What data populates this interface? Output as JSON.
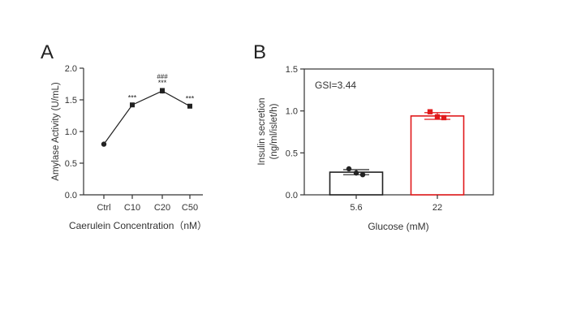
{
  "chart_data": [
    {
      "panel_label": "A",
      "type": "line",
      "categories": [
        "Ctrl",
        "C10",
        "C20",
        "C50"
      ],
      "series": [
        {
          "values": [
            0.8,
            1.42,
            1.64,
            1.4
          ],
          "errors": [
            0.0,
            0.02,
            0.04,
            0.03
          ]
        }
      ],
      "significance": [
        "",
        "***",
        "***",
        "***"
      ],
      "significance_top": [
        "",
        "",
        "###",
        ""
      ],
      "ylabel": "Amylase Activity (U/mL)",
      "xlabel": "Caerulein Concentration（nM）",
      "ylim": [
        0.0,
        2.0
      ],
      "yticks": [
        "0.0",
        "0.5",
        "1.0",
        "1.5",
        "2.0"
      ],
      "ytick_values": [
        0.0,
        0.5,
        1.0,
        1.5,
        2.0
      ],
      "grid": false,
      "colors": {
        "series": "#222222"
      }
    },
    {
      "panel_label": "B",
      "type": "bar",
      "categories": [
        "5.6",
        "22"
      ],
      "values": [
        0.27,
        0.94
      ],
      "errors": [
        0.03,
        0.04
      ],
      "points": [
        [
          0.31,
          0.26,
          0.24
        ],
        [
          0.99,
          0.93,
          0.92
        ]
      ],
      "annotation": "GSI=3.44",
      "ylabel_line1": "Insulin secretion",
      "ylabel_line2": "(ng/ml/islet/h)",
      "xlabel": "Glucose (mM)",
      "ylim": [
        0.0,
        1.5
      ],
      "yticks": [
        "0.0",
        "0.5",
        "1.0",
        "1.5"
      ],
      "ytick_values": [
        0.0,
        0.5,
        1.0,
        1.5
      ],
      "grid": false,
      "colors": {
        "bar_low": "#222222",
        "bar_high": "#e0191b"
      }
    }
  ]
}
